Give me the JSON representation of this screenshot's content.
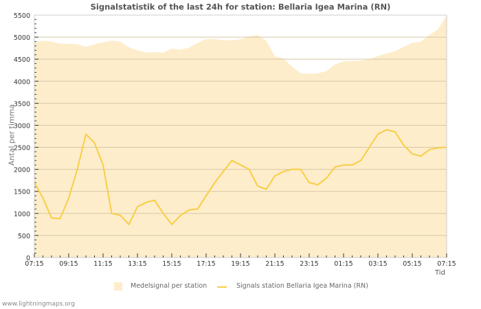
{
  "title": "Signalstatistik of the last 24h for station: Bellaria Igea Marina (RN)",
  "credit": "www.lightningmaps.org",
  "chart_data": {
    "type": "area+line",
    "title": "Signalstatistik of the last 24h for station: Bellaria Igea Marina (RN)",
    "xlabel": "Tid",
    "ylabel": "Antal per timma",
    "ylim": [
      0,
      5500
    ],
    "yticks": [
      0,
      500,
      1000,
      1500,
      2000,
      2500,
      3000,
      3500,
      4000,
      4500,
      5000,
      5500
    ],
    "xtick_labels": [
      "07:15",
      "09:15",
      "11:15",
      "13:15",
      "15:15",
      "17:15",
      "19:15",
      "21:15",
      "23:15",
      "01:15",
      "03:15",
      "05:15",
      "07:15"
    ],
    "grid": true,
    "legend_position": "bottom",
    "colors": {
      "area": "#fdedcb",
      "line": "#f9cd44",
      "grid": "#d5c7a8"
    },
    "x": [
      "07:15",
      "07:45",
      "08:15",
      "08:45",
      "09:15",
      "09:45",
      "10:15",
      "10:45",
      "11:15",
      "11:45",
      "12:15",
      "12:45",
      "13:15",
      "13:45",
      "14:15",
      "14:45",
      "15:15",
      "15:45",
      "16:15",
      "16:45",
      "17:15",
      "17:45",
      "18:15",
      "18:45",
      "19:15",
      "19:45",
      "20:15",
      "20:45",
      "21:15",
      "21:45",
      "22:15",
      "22:45",
      "23:15",
      "23:45",
      "00:15",
      "00:45",
      "01:15",
      "01:45",
      "02:15",
      "02:45",
      "03:15",
      "03:45",
      "04:15",
      "04:45",
      "05:15",
      "05:45",
      "06:15",
      "06:45",
      "07:15"
    ],
    "series": [
      {
        "name": "Medelsignal per station",
        "type": "area",
        "values": [
          4880,
          4920,
          4900,
          4850,
          4850,
          4840,
          4780,
          4840,
          4880,
          4920,
          4900,
          4770,
          4700,
          4650,
          4660,
          4650,
          4740,
          4720,
          4760,
          4870,
          4960,
          4960,
          4930,
          4930,
          4950,
          5020,
          5050,
          4920,
          4560,
          4520,
          4330,
          4180,
          4170,
          4180,
          4230,
          4380,
          4450,
          4460,
          4470,
          4500,
          4570,
          4630,
          4680,
          4780,
          4870,
          4900,
          5050,
          5180,
          5500
        ]
      },
      {
        "name": "Signals station Bellaria Igea Marina (RN)",
        "type": "line",
        "values": [
          1700,
          1350,
          900,
          880,
          1350,
          2000,
          2800,
          2600,
          2100,
          1000,
          960,
          750,
          1150,
          1250,
          1300,
          1000,
          750,
          950,
          1080,
          1100,
          1400,
          1700,
          1950,
          2200,
          2100,
          2000,
          1620,
          1550,
          1850,
          1950,
          2000,
          2000,
          1700,
          1650,
          1800,
          2050,
          2100,
          2100,
          2200,
          2500,
          2800,
          2900,
          2850,
          2550,
          2350,
          2300,
          2450,
          2490,
          2500
        ]
      }
    ]
  },
  "legend": {
    "area_label": "Medelsignal per station",
    "line_label": "Signals station Bellaria Igea Marina (RN)"
  }
}
